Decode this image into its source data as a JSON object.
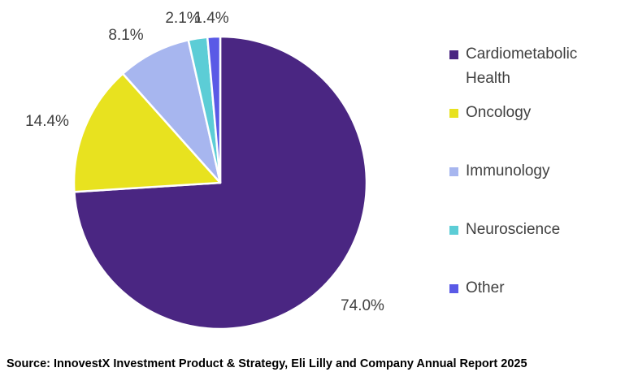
{
  "chart_data": {
    "type": "pie",
    "categories": [
      "Cardiometabolic Health",
      "Oncology",
      "Immunology",
      "Neuroscience",
      "Other"
    ],
    "values": [
      74.0,
      14.4,
      8.1,
      2.1,
      1.4
    ],
    "labels": [
      "74.0%",
      "14.4%",
      "8.1%",
      "2.1%",
      "1.4%"
    ],
    "colors": [
      "#4a2682",
      "#e8e21f",
      "#a7b6ef",
      "#5ccdd6",
      "#5a5ae6"
    ],
    "start_angle": "12 o'clock",
    "direction": "clockwise",
    "legend_position": "right"
  },
  "source": "Source: InnovestX Investment Product & Strategy, Eli Lilly and Company Annual Report 2025"
}
